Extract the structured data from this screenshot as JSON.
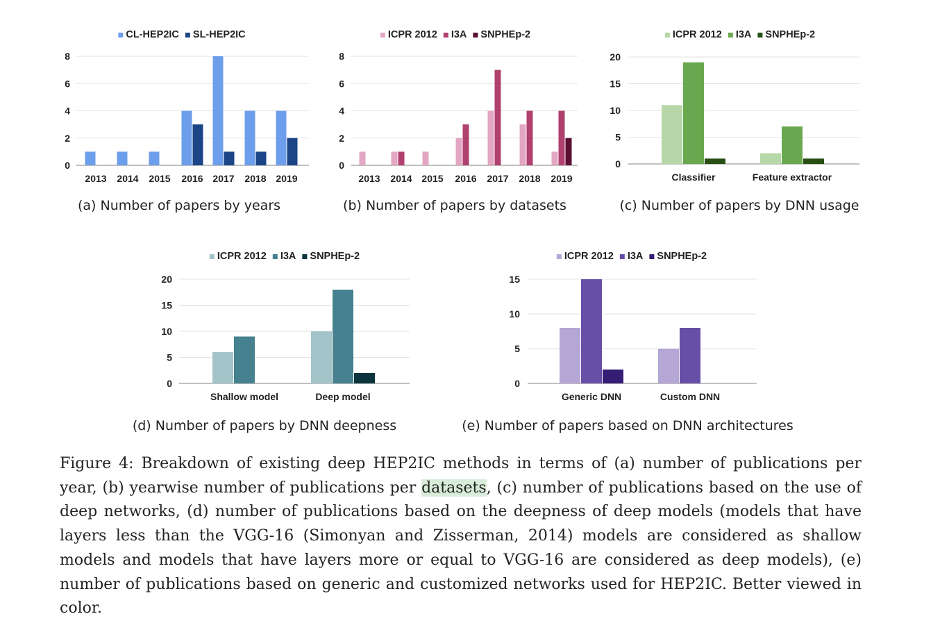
{
  "charts": [
    {
      "caption": "(a) Number of papers by years",
      "chart_data": {
        "type": "bar",
        "categories": [
          "2013",
          "2014",
          "2015",
          "2016",
          "2017",
          "2018",
          "2019"
        ],
        "series": [
          {
            "name": "CL-HEP2IC",
            "values": [
              1,
              1,
              1,
              4,
              8,
              4,
              4
            ],
            "color": "#6d9eeb"
          },
          {
            "name": "SL-HEP2IC",
            "values": [
              0,
              0,
              0,
              3,
              1,
              1,
              2
            ],
            "color": "#1c4587"
          }
        ],
        "ylim": [
          0,
          8
        ],
        "yticks": [
          0,
          2,
          4,
          6,
          8
        ],
        "grid": true,
        "legend": "top"
      }
    },
    {
      "caption": "(b) Number of papers by datasets",
      "chart_data": {
        "type": "bar",
        "categories": [
          "2013",
          "2014",
          "2015",
          "2016",
          "2017",
          "2018",
          "2019"
        ],
        "series": [
          {
            "name": "ICPR 2012",
            "values": [
              1,
              1,
              1,
              2,
              4,
              3,
              1
            ],
            "color": "#e3a6c3"
          },
          {
            "name": "I3A",
            "values": [
              0,
              1,
              0,
              3,
              7,
              4,
              4
            ],
            "color": "#b0416f"
          },
          {
            "name": "SNPHEp-2",
            "values": [
              0,
              0,
              0,
              0,
              0,
              0,
              2
            ],
            "color": "#5c0e33"
          }
        ],
        "ylim": [
          0,
          8
        ],
        "yticks": [
          0,
          2,
          4,
          6,
          8
        ],
        "grid": true,
        "legend": "top"
      }
    },
    {
      "caption": "(c) Number of papers by DNN usage",
      "chart_data": {
        "type": "bar",
        "categories": [
          "Classifier",
          "Feature extractor"
        ],
        "series": [
          {
            "name": "ICPR 2012",
            "values": [
              11,
              2
            ],
            "color": "#b6d7a8"
          },
          {
            "name": "I3A",
            "values": [
              19,
              7
            ],
            "color": "#6aa84f"
          },
          {
            "name": "SNPHEp-2",
            "values": [
              1,
              1
            ],
            "color": "#274e13"
          }
        ],
        "ylim": [
          0,
          20
        ],
        "yticks": [
          0,
          5,
          10,
          15,
          20
        ],
        "grid": true,
        "legend": "top"
      }
    },
    {
      "caption": "(d) Number of papers by DNN deepness",
      "chart_data": {
        "type": "bar",
        "categories": [
          "Shallow model",
          "Deep model"
        ],
        "series": [
          {
            "name": "ICPR 2012",
            "values": [
              6,
              10
            ],
            "color": "#a2c4c9"
          },
          {
            "name": "I3A",
            "values": [
              9,
              18
            ],
            "color": "#45818e"
          },
          {
            "name": "SNPHEp-2",
            "values": [
              0,
              2
            ],
            "color": "#0c343d"
          }
        ],
        "ylim": [
          0,
          20
        ],
        "yticks": [
          0,
          5,
          10,
          15,
          20
        ],
        "grid": true,
        "legend": "top"
      }
    },
    {
      "caption": "(e) Number of papers based on DNN architectures",
      "chart_data": {
        "type": "bar",
        "categories": [
          "Generic DNN",
          "Custom DNN"
        ],
        "series": [
          {
            "name": "ICPR 2012",
            "values": [
              8,
              5
            ],
            "color": "#b4a7d6"
          },
          {
            "name": "I3A",
            "values": [
              15,
              8
            ],
            "color": "#674ea7"
          },
          {
            "name": "SNPHEp-2",
            "values": [
              2,
              0
            ],
            "color": "#351c75"
          }
        ],
        "ylim": [
          0,
          15
        ],
        "yticks": [
          0,
          5,
          10,
          15
        ],
        "grid": true,
        "legend": "top"
      }
    }
  ],
  "figure_caption": {
    "before": "Figure 4: Breakdown of existing deep HEP2IC methods in terms of (a) number of publications per year, (b) yearwise number of publications per ",
    "highlight": "datasets",
    "after": ", (c) number of publications based on the use of deep networks, (d) number of publications based on the deepness of deep models (models that have layers less than the VGG-16 (Simonyan and Zisserman, 2014) models are considered as shallow models and models that have layers more or equal to VGG-16 are considered as deep models), (e) number of publications based on generic and customized networks used for HEP2IC. Better viewed in color."
  }
}
